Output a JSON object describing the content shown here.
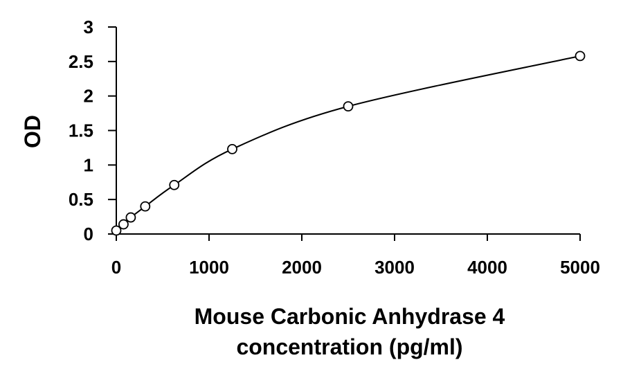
{
  "chart_data": {
    "type": "scatter",
    "title": "",
    "xlabel_lines": [
      "Mouse Carbonic Anhydrase 4",
      "concentration (pg/ml)"
    ],
    "ylabel": "OD",
    "xlim": [
      0,
      5000
    ],
    "ylim": [
      0,
      3
    ],
    "xticks": [
      "0",
      "1000",
      "2000",
      "3000",
      "4000",
      "5000"
    ],
    "yticks": [
      "0",
      "0.5",
      "1",
      "1.5",
      "2",
      "2.5",
      "3"
    ],
    "grid": false,
    "legend": "none",
    "series": [
      {
        "marker": "open-circle",
        "line": "smooth",
        "x": [
          0,
          78,
          156,
          312,
          625,
          1250,
          2500,
          5000
        ],
        "y": [
          0.05,
          0.14,
          0.24,
          0.4,
          0.71,
          1.23,
          1.85,
          2.58
        ]
      }
    ]
  }
}
